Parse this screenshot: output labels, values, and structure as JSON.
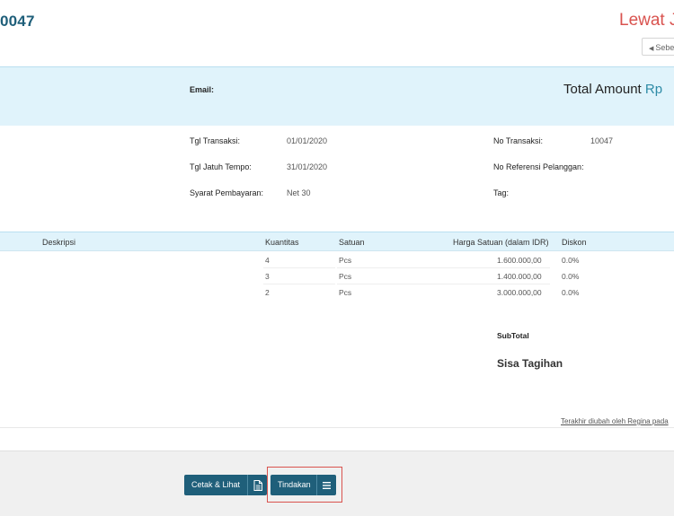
{
  "header": {
    "invoice_number": "0047",
    "status": "Lewat J",
    "prev_button": "Sebe"
  },
  "summary": {
    "email_label": "Email:",
    "total_label": "Total Amount",
    "total_currency": "Rp"
  },
  "info": {
    "tgl_transaksi_label": "Tgl Transaksi:",
    "tgl_transaksi_value": "01/01/2020",
    "tgl_jatuh_tempo_label": "Tgl Jatuh Tempo:",
    "tgl_jatuh_tempo_value": "31/01/2020",
    "syarat_label": "Syarat Pembayaran:",
    "syarat_value": "Net 30",
    "no_transaksi_label": "No Transaksi:",
    "no_transaksi_value": "10047",
    "no_referensi_label": "No Referensi Pelanggan:",
    "tag_label": "Tag:"
  },
  "table": {
    "headers": {
      "deskripsi": "Deskripsi",
      "kuantitas": "Kuantitas",
      "satuan": "Satuan",
      "harga": "Harga Satuan (dalam IDR)",
      "diskon": "Diskon"
    },
    "rows": [
      {
        "kuantitas": "4",
        "satuan": "Pcs",
        "harga": "1.600.000,00",
        "diskon": "0.0%"
      },
      {
        "kuantitas": "3",
        "satuan": "Pcs",
        "harga": "1.400.000,00",
        "diskon": "0.0%"
      },
      {
        "kuantitas": "2",
        "satuan": "Pcs",
        "harga": "3.000.000,00",
        "diskon": "0.0%"
      }
    ]
  },
  "totals": {
    "subtotal_label": "SubTotal",
    "sisa_label": "Sisa Tagihan"
  },
  "footer": {
    "updated_text": "Terakhir diubah oleh Regina pada",
    "print_button": "Cetak & Lihat",
    "action_button": "Tindakan"
  },
  "colors": {
    "primary": "#1f5f7a",
    "band": "#e0f3fb",
    "status": "#d9534f",
    "highlight": "#d9534f"
  },
  "icons": {
    "print_button_icon": "document-icon",
    "action_button_icon": "menu-icon",
    "prev_button_icon": "caret-left-icon"
  }
}
